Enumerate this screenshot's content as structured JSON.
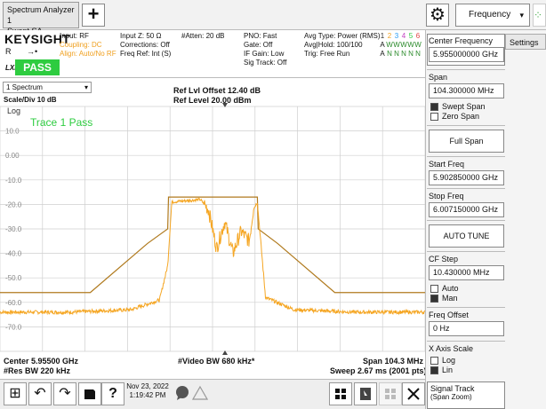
{
  "topbar": {
    "window_title_line1": "Spectrum Analyzer 1",
    "window_title_line2": "Swept SA",
    "add_symbol": "+",
    "gear_symbol": "⚙",
    "menu_label": "Frequency",
    "menu_chevron": "▾",
    "spinner_glyph": "⁘"
  },
  "header": {
    "brand": "KEYSIGHT",
    "mode": "R",
    "input_icon": "→•",
    "lxi": "LXI",
    "pass_label": "PASS",
    "col1": [
      "Input: RF",
      "Coupling: DC",
      "Align: Auto/No RF"
    ],
    "col2": [
      "Input Z: 50 Ω",
      "Corrections: Off",
      "Freq Ref: Int (S)"
    ],
    "col3": [
      "#Atten: 20 dB"
    ],
    "col4": [
      "PNO: Fast",
      "Gate: Off",
      "IF Gain: Low",
      "Sig Track: Off"
    ],
    "col5": [
      "Avg Type: Power (RMS)",
      "Avg|Hold: 100/100",
      "Trig: Free Run"
    ],
    "trace_numbers": [
      "1",
      "2",
      "3",
      "4",
      "5",
      "6"
    ],
    "trace_types": [
      "A",
      "W",
      "W",
      "W",
      "W",
      "W"
    ],
    "trace_dets": [
      "A",
      "N",
      "N",
      "N",
      "N",
      "N"
    ]
  },
  "panel": {
    "selector_label": "1 Spectrum",
    "selector_chevron": "▾",
    "scale": "Scale/Div 10 dB",
    "log": "Log",
    "ref_offset": "Ref Lvl Offset 12.40 dB",
    "ref_level": "Ref Level 20.00 dBm",
    "trace_pass": "Trace 1 Pass",
    "y_ticks": [
      "10.0",
      "0.00",
      "-10.0",
      "-20.0",
      "-30.0",
      "-40.0",
      "-50.0",
      "-60.0",
      "-70.0"
    ]
  },
  "footer": {
    "center": "Center 5.95500 GHz",
    "res_bw": "#Res BW 220 kHz",
    "video_bw": "#Video BW 680 kHz*",
    "span": "Span 104.3 MHz",
    "sweep": "Sweep 2.67 ms (2001 pts)"
  },
  "taskbar": {
    "date": "Nov 23, 2022",
    "time": "1:19:42 PM",
    "windows_icon": "⊞",
    "undo_icon": "↶",
    "redo_icon": "↷",
    "help_icon": "?"
  },
  "softkeys": {
    "settings_tab": "Settings",
    "center_freq_label": "Center Frequency",
    "center_freq_value": "5.955000000 GHz",
    "span_label": "Span",
    "span_value": "104.300000 MHz",
    "swept_span": "Swept Span",
    "zero_span": "Zero Span",
    "full_span": "Full Span",
    "start_label": "Start Freq",
    "start_value": "5.902850000 GHz",
    "stop_label": "Stop Freq",
    "stop_value": "6.007150000 GHz",
    "auto_tune": "AUTO TUNE",
    "cf_step_label": "CF Step",
    "cf_step_value": "10.430000 MHz",
    "auto": "Auto",
    "man": "Man",
    "freq_offset_label": "Freq Offset",
    "freq_offset_value": "0 Hz",
    "x_axis_label": "X Axis Scale",
    "log": "Log",
    "lin": "Lin",
    "signal_track": "Signal Track",
    "signal_track_sub": "(Span Zoom)"
  },
  "chart_data": {
    "type": "line",
    "ylim": [
      -80,
      20
    ],
    "xlim": [
      5902.85,
      6007.15
    ],
    "xunit": "MHz",
    "yunit": "dBm",
    "limit_line": {
      "x": [
        5902.85,
        5925.0,
        5939.0,
        5944.0,
        5944.2,
        5966.0,
        5966.2,
        5971.0,
        5985.0,
        6007.15
      ],
      "y": [
        -56,
        -56,
        -36,
        -30,
        -17,
        -17,
        -30,
        -36,
        -56,
        -56
      ]
    },
    "trace": {
      "x": [
        5902.85,
        5920,
        5935,
        5942,
        5944,
        5945,
        5952,
        5954,
        5956,
        5958,
        5960,
        5962,
        5964,
        5965,
        5966,
        5968,
        5975,
        5990,
        6007.15
      ],
      "y": [
        -64,
        -64,
        -63,
        -59,
        -45,
        -19,
        -18,
        -22,
        -38,
        -27,
        -40,
        -31,
        -35,
        -22,
        -19,
        -58,
        -63,
        -64,
        -64
      ]
    },
    "grid": true
  },
  "colors": {
    "limit": "#b07a1e",
    "trace": "#f5a623",
    "pass": "#2ecc40",
    "trace_pass_text": "#2ecc40"
  }
}
